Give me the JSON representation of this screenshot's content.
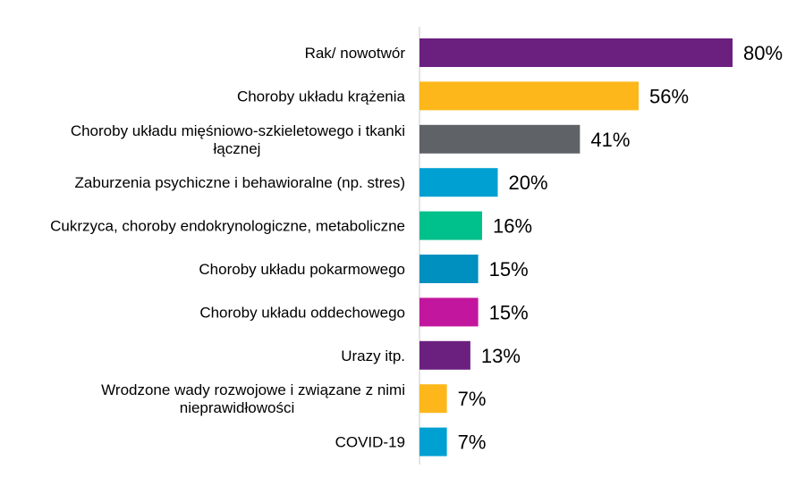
{
  "chart_data": {
    "type": "bar",
    "orientation": "horizontal",
    "categories": [
      [
        "Rak/ nowotwór"
      ],
      [
        "Choroby układu krążenia"
      ],
      [
        "Choroby układu mięśniowo-szkieletowego i tkanki",
        "łącznej"
      ],
      [
        "Zaburzenia psychiczne i behawioralne (np. stres)"
      ],
      [
        "Cukrzyca, choroby endokrynologiczne, metaboliczne"
      ],
      [
        "Choroby układu pokarmowego"
      ],
      [
        "Choroby układu oddechowego"
      ],
      [
        "Urazy itp."
      ],
      [
        "Wrodzone wady rozwojowe i związane z nimi",
        "nieprawidłowości"
      ],
      [
        "COVID-19"
      ]
    ],
    "values": [
      80,
      56,
      41,
      20,
      16,
      15,
      15,
      13,
      7,
      7
    ],
    "value_labels": [
      "80%",
      "56%",
      "41%",
      "20%",
      "16%",
      "15%",
      "15%",
      "13%",
      "7%",
      "7%"
    ],
    "colors": [
      "#6b2080",
      "#fdb71a",
      "#5f6368",
      "#00a0d2",
      "#00c08b",
      "#0090c0",
      "#c3169e",
      "#6b2080",
      "#fdb71a",
      "#00a0d2"
    ],
    "xlim": [
      0,
      100
    ],
    "grid": false,
    "legend": "none"
  }
}
